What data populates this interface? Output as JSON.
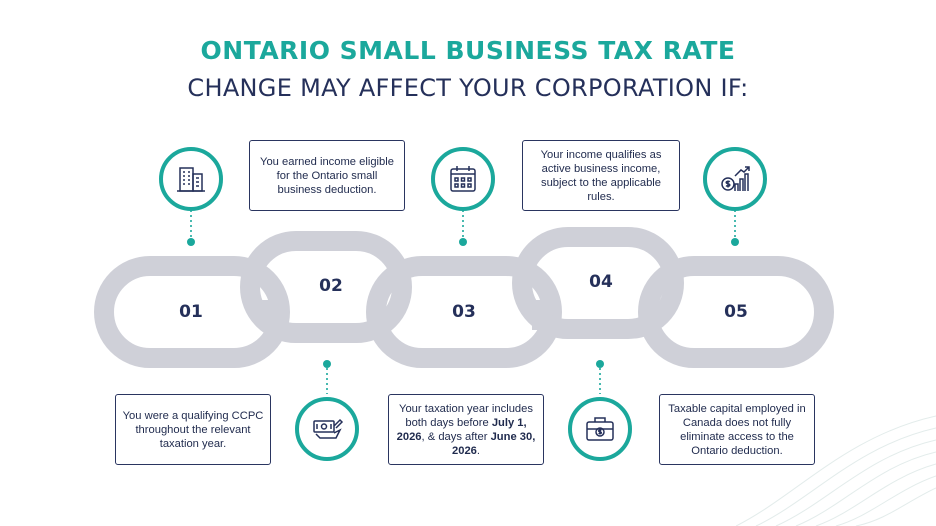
{
  "title": {
    "line1": "ONTARIO SMALL BUSINESS TAX RATE",
    "line2": "CHANGE MAY AFFECT YOUR CORPORATION IF:"
  },
  "steps": [
    {
      "number": "01",
      "icon": "office-building-icon",
      "text": "You were a qualifying CCPC throughout the relevant taxation year."
    },
    {
      "number": "02",
      "icon": "cash-document-icon",
      "text": "You earned income eligible for the Ontario small business deduction."
    },
    {
      "number": "03",
      "icon": "calendar-icon",
      "text_parts": [
        "Your taxation year includes both days before ",
        "July 1, 2026",
        ", & days after ",
        "June 30, 2026",
        "."
      ]
    },
    {
      "number": "04",
      "icon": "briefcase-dollar-icon",
      "text": "Your income qualifies as active business income, subject to the applicable rules."
    },
    {
      "number": "05",
      "icon": "dollar-growth-chart-icon",
      "text": "Taxable capital employed in Canada does not fully eliminate access to the Ontario deduction."
    }
  ],
  "colors": {
    "teal": "#1ba89c",
    "navy": "#25305a",
    "chain": "#cfd0d8"
  }
}
